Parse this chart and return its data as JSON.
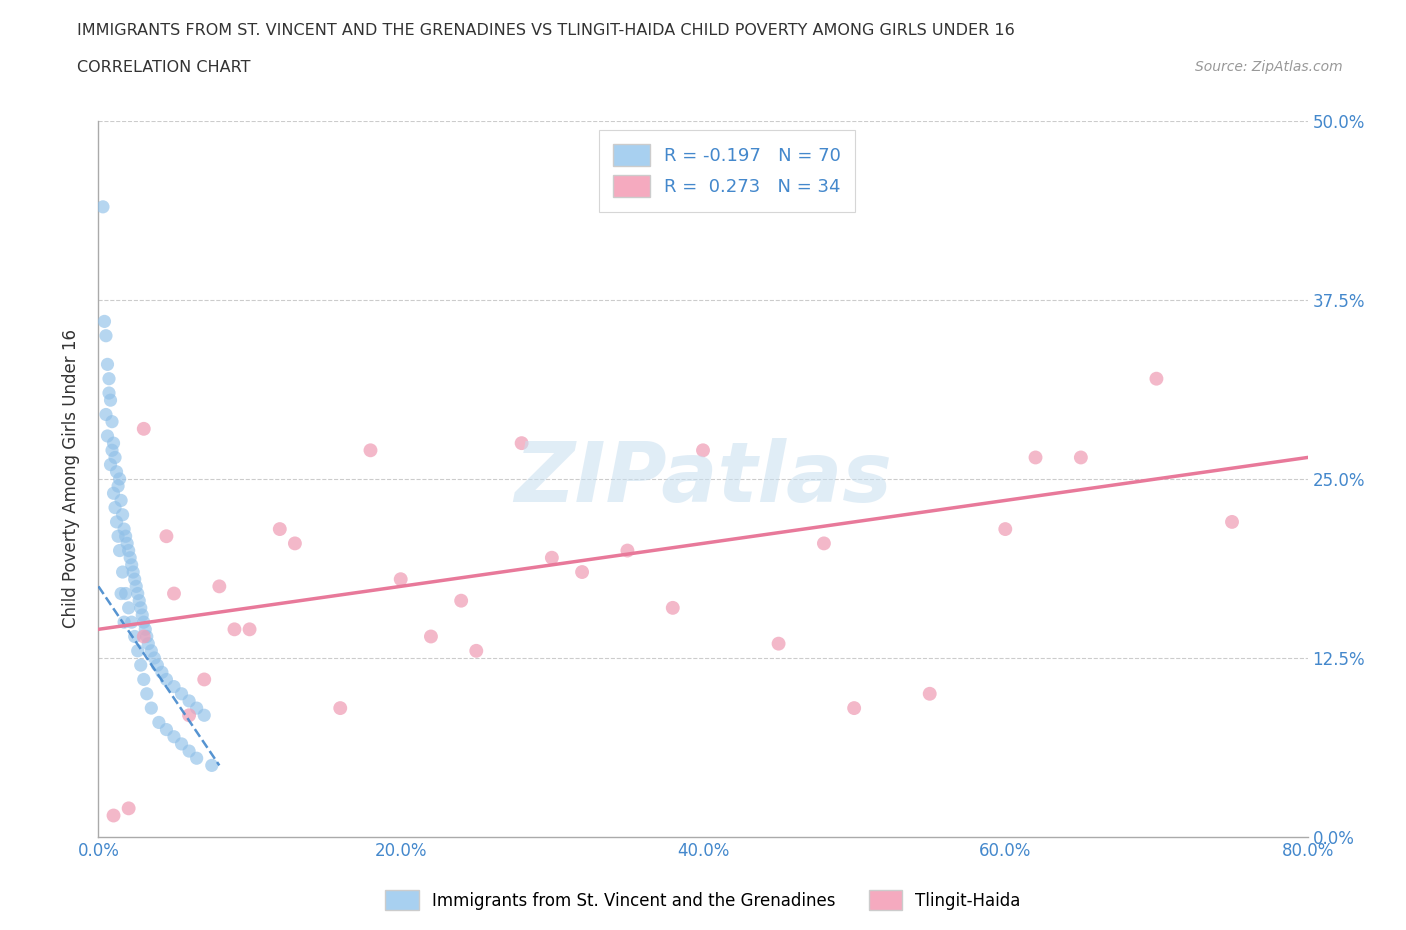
{
  "title_line1": "IMMIGRANTS FROM ST. VINCENT AND THE GRENADINES VS TLINGIT-HAIDA CHILD POVERTY AMONG GIRLS UNDER 16",
  "title_line2": "CORRELATION CHART",
  "source_text": "Source: ZipAtlas.com",
  "xlabel_values": [
    0.0,
    20.0,
    40.0,
    60.0,
    80.0
  ],
  "ylabel_values": [
    0.0,
    12.5,
    25.0,
    37.5,
    50.0
  ],
  "xmin": 0.0,
  "xmax": 80.0,
  "ymin": 0.0,
  "ymax": 50.0,
  "blue_R": -0.197,
  "blue_N": 70,
  "pink_R": 0.273,
  "pink_N": 34,
  "blue_color": "#A8D0F0",
  "pink_color": "#F5AABF",
  "blue_scatter_color": "#90C0E8",
  "pink_scatter_color": "#F0A0B8",
  "blue_label": "Immigrants from St. Vincent and the Grenadines",
  "pink_label": "Tlingit-Haida",
  "watermark": "ZIPatlas",
  "blue_x": [
    0.3,
    0.4,
    0.5,
    0.6,
    0.7,
    0.8,
    0.9,
    1.0,
    1.1,
    1.2,
    1.3,
    1.4,
    1.5,
    1.6,
    1.7,
    1.8,
    1.9,
    2.0,
    2.1,
    2.2,
    2.3,
    2.4,
    2.5,
    2.6,
    2.7,
    2.8,
    2.9,
    3.0,
    3.1,
    3.2,
    3.3,
    3.5,
    3.7,
    3.9,
    4.2,
    4.5,
    5.0,
    5.5,
    6.0,
    6.5,
    7.0,
    0.5,
    0.6,
    0.8,
    1.0,
    1.2,
    1.4,
    1.6,
    1.8,
    2.0,
    2.2,
    2.4,
    2.6,
    2.8,
    3.0,
    3.2,
    3.5,
    4.0,
    4.5,
    5.0,
    5.5,
    6.0,
    6.5,
    7.5,
    0.7,
    0.9,
    1.1,
    1.3,
    1.5,
    1.7
  ],
  "blue_y": [
    44.0,
    36.0,
    35.0,
    33.0,
    32.0,
    30.5,
    29.0,
    27.5,
    26.5,
    25.5,
    24.5,
    25.0,
    23.5,
    22.5,
    21.5,
    21.0,
    20.5,
    20.0,
    19.5,
    19.0,
    18.5,
    18.0,
    17.5,
    17.0,
    16.5,
    16.0,
    15.5,
    15.0,
    14.5,
    14.0,
    13.5,
    13.0,
    12.5,
    12.0,
    11.5,
    11.0,
    10.5,
    10.0,
    9.5,
    9.0,
    8.5,
    29.5,
    28.0,
    26.0,
    24.0,
    22.0,
    20.0,
    18.5,
    17.0,
    16.0,
    15.0,
    14.0,
    13.0,
    12.0,
    11.0,
    10.0,
    9.0,
    8.0,
    7.5,
    7.0,
    6.5,
    6.0,
    5.5,
    5.0,
    31.0,
    27.0,
    23.0,
    21.0,
    17.0,
    15.0
  ],
  "pink_x": [
    1.0,
    2.0,
    3.0,
    4.5,
    6.0,
    8.0,
    10.0,
    13.0,
    16.0,
    20.0,
    22.0,
    25.0,
    28.0,
    30.0,
    35.0,
    38.0,
    40.0,
    45.0,
    50.0,
    55.0,
    60.0,
    65.0,
    70.0,
    75.0,
    3.0,
    5.0,
    7.0,
    9.0,
    12.0,
    18.0,
    24.0,
    32.0,
    48.0,
    62.0
  ],
  "pink_y": [
    1.5,
    2.0,
    14.0,
    21.0,
    8.5,
    17.5,
    14.5,
    20.5,
    9.0,
    18.0,
    14.0,
    13.0,
    27.5,
    19.5,
    20.0,
    16.0,
    27.0,
    13.5,
    9.0,
    10.0,
    21.5,
    26.5,
    32.0,
    22.0,
    28.5,
    17.0,
    11.0,
    14.5,
    21.5,
    27.0,
    16.5,
    18.5,
    20.5,
    26.5
  ],
  "blue_trendline_x": [
    0.0,
    8.0
  ],
  "blue_trendline_y": [
    17.5,
    5.0
  ],
  "pink_trendline_x": [
    0.0,
    80.0
  ],
  "pink_trendline_y": [
    14.5,
    26.5
  ]
}
